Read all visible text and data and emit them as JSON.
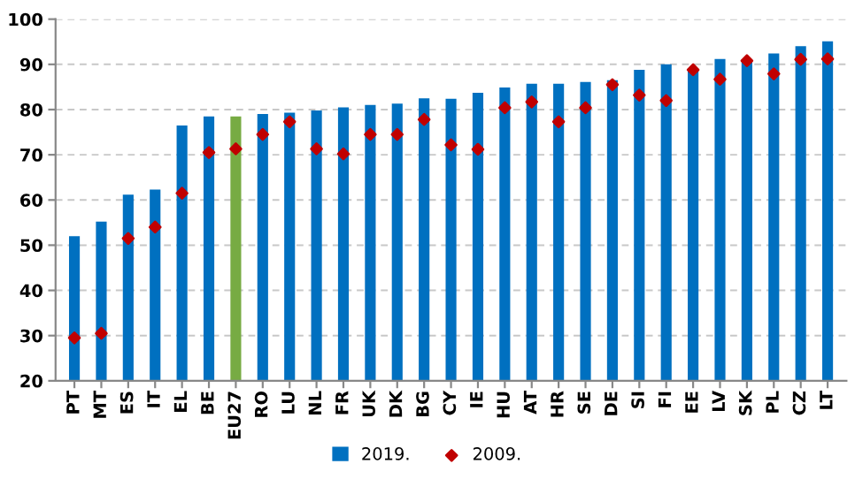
{
  "chart_data": {
    "type": "bar",
    "categories": [
      "PT",
      "MT",
      "ES",
      "IT",
      "EL",
      "BE",
      "EU27",
      "RO",
      "LU",
      "NL",
      "FR",
      "UK",
      "DK",
      "BG",
      "CY",
      "IE",
      "HU",
      "AT",
      "HR",
      "SE",
      "DE",
      "SI",
      "FI",
      "EE",
      "LV",
      "SK",
      "PL",
      "CZ",
      "LT"
    ],
    "series": [
      {
        "name": "2019.",
        "color": "#0070c0",
        "colors": [
          "#0070c0",
          "#0070c0",
          "#0070c0",
          "#0070c0",
          "#0070c0",
          "#0070c0",
          "#77ab43",
          "#0070c0",
          "#0070c0",
          "#0070c0",
          "#0070c0",
          "#0070c0",
          "#0070c0",
          "#0070c0",
          "#0070c0",
          "#0070c0",
          "#0070c0",
          "#0070c0",
          "#0070c0",
          "#0070c0",
          "#0070c0",
          "#0070c0",
          "#0070c0",
          "#0070c0",
          "#0070c0",
          "#0070c0",
          "#0070c0",
          "#0070c0",
          "#0070c0"
        ],
        "values": [
          52,
          55.2,
          61.2,
          62.3,
          76.5,
          78.5,
          78.5,
          79,
          79.3,
          79.8,
          80.5,
          81,
          81.3,
          82.5,
          82.4,
          83.7,
          84.9,
          85.7,
          85.7,
          86.1,
          86.5,
          88.8,
          90,
          89,
          91.2,
          91,
          92.4,
          94,
          95.1
        ]
      },
      {
        "name": "2009.",
        "type": "scatter",
        "color": "#c00000",
        "marker": "diamond",
        "values": [
          29.5,
          30.5,
          51.5,
          54,
          61.5,
          70.5,
          71.3,
          74.5,
          77.3,
          71.3,
          70.2,
          74.5,
          74.5,
          77.8,
          72.2,
          71.2,
          80.4,
          81.7,
          77.3,
          80.4,
          85.5,
          83.2,
          82,
          88.8,
          86.7,
          90.8,
          87.9,
          91.1,
          91.2
        ]
      }
    ],
    "ylim": [
      20,
      100
    ],
    "yticks": [
      20,
      30,
      40,
      50,
      60,
      70,
      80,
      90,
      100
    ],
    "grid": "y",
    "legend": "bottom"
  }
}
